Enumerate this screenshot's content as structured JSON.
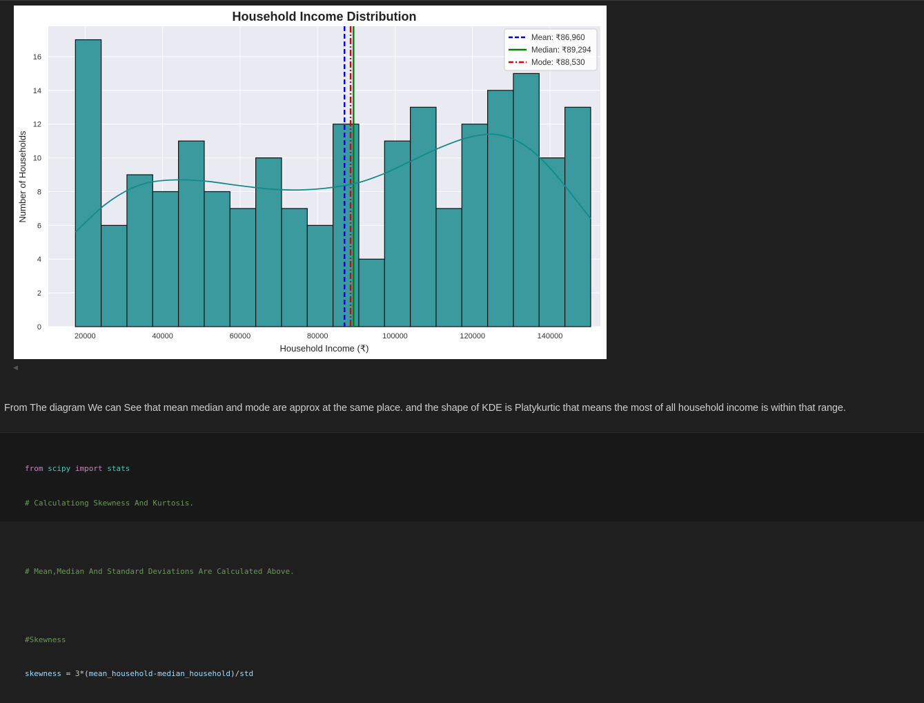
{
  "output": {
    "chart_data": {
      "type": "bar",
      "title": "Household Income Distribution",
      "xlabel": "Household Income (₹)",
      "ylabel": "Number of Households",
      "xlim": [
        10500,
        153000
      ],
      "ylim": [
        0,
        17.8
      ],
      "xticks": [
        20000,
        40000,
        60000,
        80000,
        100000,
        120000,
        140000
      ],
      "yticks": [
        0,
        2,
        4,
        6,
        8,
        10,
        12,
        14,
        16
      ],
      "grid": true,
      "legend_position": "top-right",
      "bins": {
        "edges": [
          17500,
          24150,
          30800,
          37450,
          44100,
          50750,
          57400,
          64050,
          70700,
          77350,
          84000,
          90650,
          97300,
          103950,
          110600,
          117250,
          123900,
          130550,
          137200,
          143850,
          150500
        ],
        "counts": [
          17,
          6,
          9,
          8,
          11,
          8,
          7,
          10,
          7,
          6,
          12,
          4,
          11,
          13,
          7,
          12,
          14,
          15,
          10,
          13
        ]
      },
      "kde": {
        "x": [
          17500,
          25000,
          32000,
          38000,
          45000,
          52000,
          60000,
          68000,
          75000,
          82000,
          90000,
          97000,
          104000,
          111000,
          118000,
          124000,
          128000,
          132000,
          136000,
          140000,
          144000,
          150500
        ],
        "y": [
          5.6,
          7.2,
          8.2,
          8.6,
          8.7,
          8.6,
          8.35,
          8.15,
          8.1,
          8.2,
          8.5,
          9.05,
          9.8,
          10.55,
          11.15,
          11.4,
          11.3,
          10.95,
          10.3,
          9.4,
          8.3,
          6.4
        ]
      },
      "reference_lines": [
        {
          "name": "Mean: ₹86,960",
          "value": 86960,
          "color": "#0000cc",
          "style": "dashed"
        },
        {
          "name": "Median: ₹89,294",
          "value": 89294,
          "color": "#008000",
          "style": "solid"
        },
        {
          "name": "Mode: ₹88,530",
          "value": 88530,
          "color": "#e00000",
          "style": "dashdot"
        }
      ],
      "colors": {
        "bar": "#3a9a9e",
        "bar_edge": "#111111",
        "kde": "#138a8a",
        "plot_bg": "#eaeaf2",
        "grid": "#ffffff"
      }
    }
  },
  "markdown": {
    "text": "From The diagram We can See that mean median and mode are approx at the same place. and the shape of KDE is Platykurtic that means the most of all household income is within that range."
  },
  "code": {
    "line1": {
      "kw1": "from",
      "mod1": " scipy",
      "kw2": " import",
      "mod2": " stats"
    },
    "line2": "# Calculationg Skewness And Kurtosis.",
    "line4": "# Mean,Median And Standard Deviations Are Calculated Above.",
    "line6": "#Skewness",
    "line7": {
      "v1": "skewness",
      "op1": " = ",
      "n1": "3",
      "op2": "*(",
      "v2": "mean_household",
      "op3": "-",
      "v3": "median_household",
      "op4": ")/",
      "v4": "std"
    }
  }
}
